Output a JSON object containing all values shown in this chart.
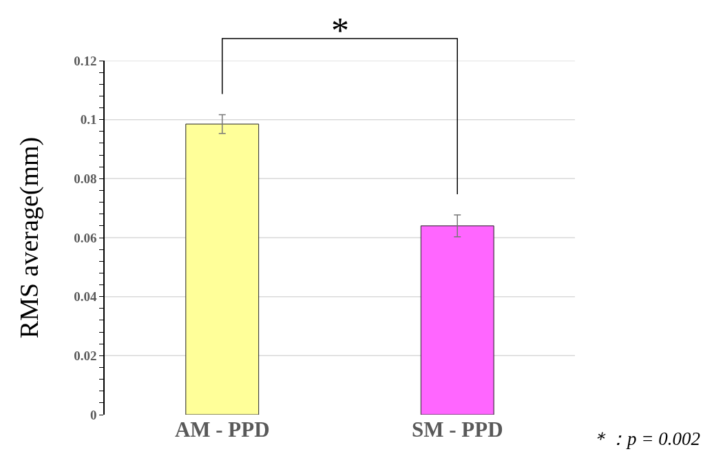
{
  "chart_data": {
    "type": "bar",
    "ylabel": "RMS average(mm)",
    "categories": [
      "AM - PPD",
      "SM - PPD"
    ],
    "values": [
      0.0985,
      0.064
    ],
    "errors": [
      0.0032,
      0.0037
    ],
    "colors": [
      "#ffff99",
      "#ff66ff"
    ],
    "ylim": [
      0,
      0.12
    ],
    "yticks": [
      0,
      {
        "value": 0.004,
        "label": null
      },
      {
        "value": 0.008,
        "label": null
      },
      {
        "value": 0.012,
        "label": null
      },
      {
        "value": 0.016,
        "label": null
      },
      0.02,
      {
        "value": 0.024,
        "label": null
      },
      {
        "value": 0.028,
        "label": null
      },
      {
        "value": 0.032,
        "label": null
      },
      {
        "value": 0.036,
        "label": null
      },
      0.04,
      {
        "value": 0.044,
        "label": null
      },
      {
        "value": 0.048,
        "label": null
      },
      {
        "value": 0.052,
        "label": null
      },
      {
        "value": 0.056,
        "label": null
      },
      0.06,
      {
        "value": 0.064,
        "label": null
      },
      {
        "value": 0.068,
        "label": null
      },
      {
        "value": 0.072,
        "label": null
      },
      {
        "value": 0.076,
        "label": null
      },
      0.08,
      {
        "value": 0.084,
        "label": null
      },
      {
        "value": 0.088,
        "label": null
      },
      {
        "value": 0.092,
        "label": null
      },
      {
        "value": 0.096,
        "label": null
      },
      0.1,
      {
        "value": 0.104,
        "label": null
      },
      {
        "value": 0.108,
        "label": null
      },
      {
        "value": 0.112,
        "label": null
      },
      {
        "value": 0.116,
        "label": null
      },
      0.12
    ],
    "grid": "y",
    "annotations": [
      "*",
      "＊：p = 0.002"
    ]
  }
}
